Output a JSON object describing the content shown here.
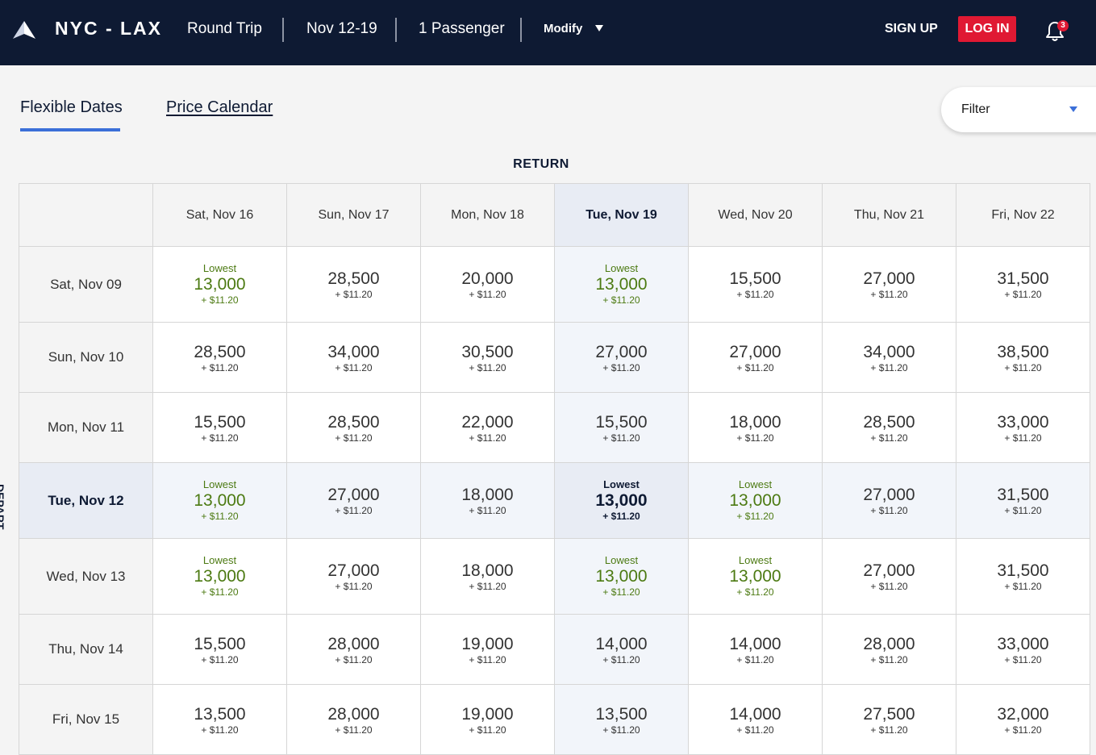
{
  "header": {
    "route": "NYC - LAX",
    "trip_type": "Round Trip",
    "dates": "Nov 12-19",
    "passengers": "1 Passenger",
    "modify_label": "Modify",
    "signup_label": "SIGN UP",
    "login_label": "LOG IN",
    "notification_count": "3"
  },
  "tabs": {
    "flexible_dates": "Flexible Dates",
    "price_calendar": "Price Calendar"
  },
  "filter": {
    "label": "Filter"
  },
  "grid": {
    "return_label": "RETURN",
    "depart_label": "DEPART",
    "lowest_label": "Lowest",
    "tax": "+ $11.20",
    "selected_return_index": 3,
    "selected_depart_index": 3,
    "return_dates": [
      "Sat, Nov 16",
      "Sun, Nov 17",
      "Mon, Nov 18",
      "Tue, Nov 19",
      "Wed, Nov 20",
      "Thu, Nov 21",
      "Fri, Nov 22"
    ],
    "rows": [
      {
        "depart": "Sat, Nov 09",
        "prices": [
          "13,000",
          "28,500",
          "20,000",
          "13,000",
          "15,500",
          "27,000",
          "31,500"
        ],
        "lowest": [
          true,
          false,
          false,
          true,
          false,
          false,
          false
        ]
      },
      {
        "depart": "Sun, Nov 10",
        "prices": [
          "28,500",
          "34,000",
          "30,500",
          "27,000",
          "27,000",
          "34,000",
          "38,500"
        ],
        "lowest": [
          false,
          false,
          false,
          false,
          false,
          false,
          false
        ]
      },
      {
        "depart": "Mon, Nov 11",
        "prices": [
          "15,500",
          "28,500",
          "22,000",
          "15,500",
          "18,000",
          "28,500",
          "33,000"
        ],
        "lowest": [
          false,
          false,
          false,
          false,
          false,
          false,
          false
        ]
      },
      {
        "depart": "Tue, Nov 12",
        "prices": [
          "13,000",
          "27,000",
          "18,000",
          "13,000",
          "13,000",
          "27,000",
          "31,500"
        ],
        "lowest": [
          true,
          false,
          false,
          true,
          true,
          false,
          false
        ]
      },
      {
        "depart": "Wed, Nov 13",
        "prices": [
          "13,000",
          "27,000",
          "18,000",
          "13,000",
          "13,000",
          "27,000",
          "31,500"
        ],
        "lowest": [
          true,
          false,
          false,
          true,
          true,
          false,
          false
        ]
      },
      {
        "depart": "Thu, Nov 14",
        "prices": [
          "15,500",
          "28,000",
          "19,000",
          "14,000",
          "14,000",
          "28,000",
          "33,000"
        ],
        "lowest": [
          false,
          false,
          false,
          false,
          false,
          false,
          false
        ]
      },
      {
        "depart": "Fri, Nov 15",
        "prices": [
          "13,500",
          "28,000",
          "19,000",
          "13,500",
          "14,000",
          "27,500",
          "32,000"
        ],
        "lowest": [
          false,
          false,
          false,
          false,
          false,
          false,
          false
        ]
      }
    ]
  }
}
